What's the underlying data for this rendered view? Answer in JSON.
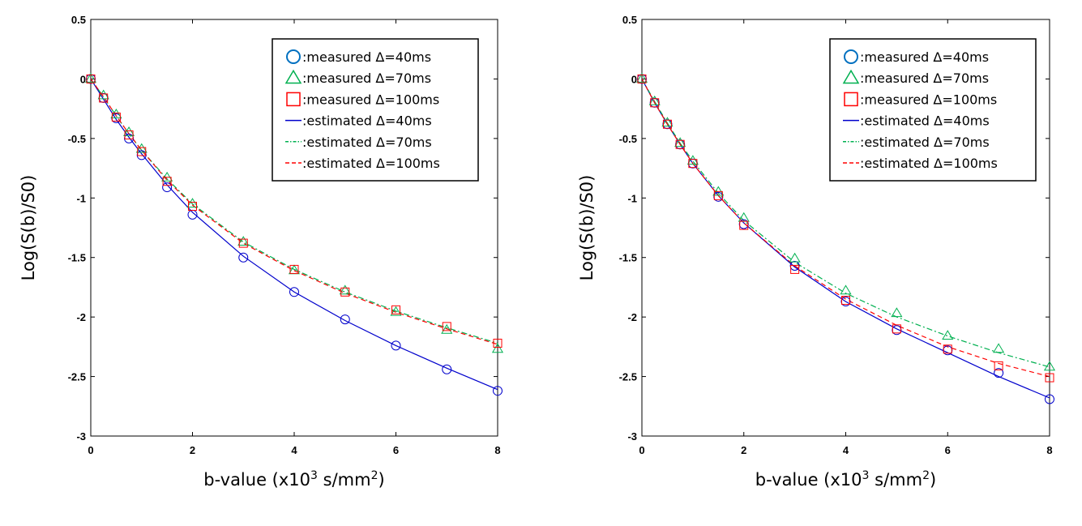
{
  "colors": {
    "blue": "#0000cc",
    "green": "#00b050",
    "red": "#ff0000",
    "legend_blue": "#0070c0"
  },
  "chart_data": [
    {
      "type": "line",
      "panel": "left",
      "xlabel": "b-value (x10",
      "xlabel_sup": "3",
      "xlabel_tail": " s/mm",
      "xlabel_sup2": "2",
      "xlabel_end": ")",
      "ylabel": "Log(S(b)/S0)",
      "xlim": [
        0,
        8
      ],
      "ylim": [
        -3,
        0.5
      ],
      "xticks": [
        "0",
        "2",
        "4",
        "6",
        "8"
      ],
      "yticks": [
        "0.5",
        "0",
        "-0.5",
        "-1",
        "-1.5",
        "-2",
        "-2.5",
        "-3"
      ],
      "legend": [
        ":measured Δ=40ms",
        ":measured Δ=70ms",
        ":measured Δ=100ms",
        ":estimated Δ=40ms",
        ":estimated Δ=70ms",
        ":estimated Δ=100ms"
      ],
      "x": [
        0,
        0.25,
        0.5,
        0.75,
        1,
        1.5,
        2,
        3,
        4,
        5,
        6,
        7,
        8
      ],
      "series": [
        {
          "name": "measured 40ms",
          "kind": "circle",
          "color": "blue",
          "values": [
            0,
            -0.16,
            -0.33,
            -0.5,
            -0.64,
            -0.91,
            -1.14,
            -1.5,
            -1.79,
            -2.02,
            -2.24,
            -2.44,
            -2.62
          ]
        },
        {
          "name": "measured 70ms",
          "kind": "triangle",
          "color": "green",
          "values": [
            0,
            -0.14,
            -0.3,
            -0.45,
            -0.59,
            -0.83,
            -1.05,
            -1.37,
            -1.61,
            -1.78,
            -1.96,
            -2.11,
            -2.27
          ]
        },
        {
          "name": "measured 100ms",
          "kind": "square",
          "color": "red",
          "values": [
            0,
            -0.16,
            -0.32,
            -0.47,
            -0.61,
            -0.86,
            -1.07,
            -1.38,
            -1.6,
            -1.79,
            -1.94,
            -2.08,
            -2.22
          ]
        },
        {
          "name": "estimated 40ms",
          "kind": "solid",
          "color": "blue",
          "values": [
            0,
            -0.17,
            -0.34,
            -0.49,
            -0.63,
            -0.89,
            -1.12,
            -1.49,
            -1.79,
            -2.03,
            -2.24,
            -2.43,
            -2.61
          ]
        },
        {
          "name": "estimated 70ms",
          "kind": "dashdot",
          "color": "green",
          "values": [
            0,
            -0.15,
            -0.31,
            -0.46,
            -0.6,
            -0.84,
            -1.05,
            -1.37,
            -1.6,
            -1.79,
            -1.95,
            -2.09,
            -2.22
          ]
        },
        {
          "name": "estimated 100ms",
          "kind": "dashed",
          "color": "red",
          "values": [
            0,
            -0.15,
            -0.31,
            -0.46,
            -0.6,
            -0.85,
            -1.06,
            -1.38,
            -1.61,
            -1.8,
            -1.96,
            -2.1,
            -2.23
          ]
        }
      ]
    },
    {
      "type": "line",
      "panel": "right",
      "xlabel": "b-value (x10",
      "xlabel_sup": "3",
      "xlabel_tail": " s/mm",
      "xlabel_sup2": "2",
      "xlabel_end": ")",
      "ylabel": "Log(S(b)/S0)",
      "xlim": [
        0,
        8
      ],
      "ylim": [
        -3,
        0.5
      ],
      "xticks": [
        "0",
        "2",
        "4",
        "6",
        "8"
      ],
      "yticks": [
        "0.5",
        "0",
        "-0.5",
        "-1",
        "-1.5",
        "-2",
        "-2.5",
        "-3"
      ],
      "legend": [
        ":measured Δ=40ms",
        ":measured Δ=70ms",
        ":measured Δ=100ms",
        ":estimated Δ=40ms",
        ":estimated Δ=70ms",
        ":estimated Δ=100ms"
      ],
      "x": [
        0,
        0.25,
        0.5,
        0.75,
        1,
        1.5,
        2,
        3,
        4,
        5,
        6,
        7,
        8
      ],
      "series": [
        {
          "name": "measured 40ms",
          "kind": "circle",
          "color": "blue",
          "values": [
            0,
            -0.2,
            -0.38,
            -0.55,
            -0.71,
            -0.99,
            -1.22,
            -1.57,
            -1.87,
            -2.11,
            -2.28,
            -2.47,
            -2.69
          ]
        },
        {
          "name": "measured 70ms",
          "kind": "triangle",
          "color": "green",
          "values": [
            0,
            -0.19,
            -0.37,
            -0.54,
            -0.69,
            -0.95,
            -1.17,
            -1.51,
            -1.78,
            -1.97,
            -2.16,
            -2.27,
            -2.42
          ]
        },
        {
          "name": "measured 100ms",
          "kind": "square",
          "color": "red",
          "values": [
            0,
            -0.2,
            -0.38,
            -0.55,
            -0.71,
            -0.98,
            -1.23,
            -1.6,
            -1.86,
            -2.1,
            -2.27,
            -2.41,
            -2.51
          ]
        },
        {
          "name": "estimated 40ms",
          "kind": "solid",
          "color": "blue",
          "values": [
            0,
            -0.2,
            -0.38,
            -0.55,
            -0.71,
            -0.98,
            -1.21,
            -1.58,
            -1.87,
            -2.1,
            -2.3,
            -2.5,
            -2.68
          ]
        },
        {
          "name": "estimated 70ms",
          "kind": "dashdot",
          "color": "green",
          "values": [
            0,
            -0.19,
            -0.37,
            -0.54,
            -0.69,
            -0.96,
            -1.19,
            -1.54,
            -1.8,
            -2.0,
            -2.16,
            -2.3,
            -2.42
          ]
        },
        {
          "name": "estimated 100ms",
          "kind": "dashed",
          "color": "red",
          "values": [
            0,
            -0.2,
            -0.38,
            -0.55,
            -0.71,
            -0.98,
            -1.21,
            -1.57,
            -1.85,
            -2.07,
            -2.25,
            -2.39,
            -2.5
          ]
        }
      ]
    }
  ]
}
